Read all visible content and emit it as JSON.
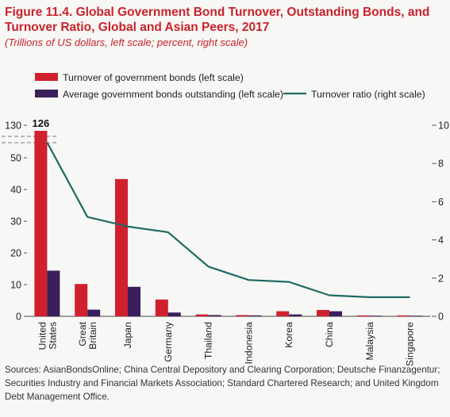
{
  "figure": {
    "title": "Figure 11.4. Global Government Bond Turnover, Outstanding Bonds, and Turnover Ratio, Global and Asian Peers, 2017",
    "subtitle": "(Trillions of US dollars, left scale; percent, right scale)",
    "sources": "Sources: AsianBondsOnline; China Central Depository and Clearing Corporation; Deutsche Finanzagentur; Securities Industry and Financial Markets Association; Standard Chartered Research; and United Kingdom Debt Management Office."
  },
  "colors": {
    "turnover": "#d0202e",
    "outstanding": "#3b1f5c",
    "ratio": "#1f6b63",
    "title": "#c8232c"
  },
  "chart_data": {
    "type": "bar",
    "categories": [
      "United States",
      "Great Britain",
      "Japan",
      "Germany",
      "Thailand",
      "Indonesia",
      "Korea",
      "China",
      "Malaysia",
      "Singapore"
    ],
    "category_lines": [
      [
        "United",
        "States"
      ],
      [
        "Great",
        "Britain"
      ],
      [
        "Japan"
      ],
      [
        "Germany"
      ],
      [
        "Thailand"
      ],
      [
        "Indonesia"
      ],
      [
        "Korea"
      ],
      [
        "China"
      ],
      [
        "Malaysia"
      ],
      [
        "Singapore"
      ]
    ],
    "series": [
      {
        "name": "Turnover of government bonds (left scale)",
        "kind": "bar",
        "axis": "left",
        "values": [
          126,
          10.2,
          43.3,
          5.3,
          0.6,
          0.4,
          1.6,
          2.0,
          0.3,
          0.3
        ]
      },
      {
        "name": "Average government bonds outstanding (left scale)",
        "kind": "bar",
        "axis": "left",
        "values": [
          14.4,
          2.1,
          9.3,
          1.2,
          0.4,
          0.3,
          0.6,
          1.6,
          0.2,
          0.2
        ]
      },
      {
        "name": "Turnover ratio (right scale)",
        "kind": "line",
        "axis": "right",
        "values": [
          9.1,
          5.2,
          4.7,
          4.4,
          2.6,
          1.9,
          1.8,
          1.1,
          1.0,
          1.0
        ]
      }
    ],
    "left_axis": {
      "ticks": [
        0,
        10,
        20,
        30,
        40,
        50
      ],
      "break_tick": 130,
      "ylim": [
        0,
        57
      ]
    },
    "right_axis": {
      "ticks": [
        0,
        2,
        4,
        6,
        8,
        10
      ],
      "ylim": [
        0,
        10
      ]
    },
    "bar_label": {
      "category": "United States",
      "text": "126"
    },
    "legend_placement": "top",
    "axis_break": true
  }
}
